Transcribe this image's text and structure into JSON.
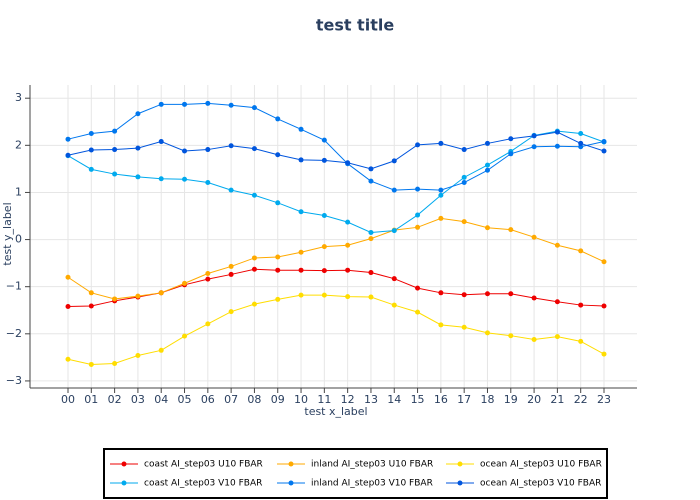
{
  "chart_data": {
    "type": "line",
    "title": "test title",
    "x_label": "test x_label",
    "y_label": "test y_label",
    "categories": [
      "00",
      "01",
      "02",
      "03",
      "04",
      "05",
      "06",
      "07",
      "08",
      "09",
      "10",
      "11",
      "12",
      "13",
      "14",
      "15",
      "16",
      "17",
      "18",
      "19",
      "20",
      "21",
      "22",
      "23"
    ],
    "ylim": [
      -3.15,
      3.28
    ],
    "yticks": [
      {
        "value": -3,
        "label": "−3"
      },
      {
        "value": -2,
        "label": "−2"
      },
      {
        "value": -1,
        "label": "−1"
      },
      0,
      1,
      2,
      3
    ],
    "grid": true,
    "series": [
      {
        "name": "coast AI_step03 U10 FBAR",
        "color": "#ee0000",
        "values": [
          -1.42,
          -1.41,
          -1.3,
          -1.22,
          -1.13,
          -0.96,
          -0.84,
          -0.74,
          -0.63,
          -0.65,
          -0.65,
          -0.66,
          -0.65,
          -0.7,
          -0.83,
          -1.03,
          -1.13,
          -1.17,
          -1.15,
          -1.15,
          -1.24,
          -1.32,
          -1.39,
          -1.41
        ]
      },
      {
        "name": "inland AI_step03 U10 FBAR",
        "color": "#ffaa00",
        "values": [
          -0.8,
          -1.13,
          -1.26,
          -1.2,
          -1.13,
          -0.93,
          -0.72,
          -0.57,
          -0.39,
          -0.37,
          -0.27,
          -0.15,
          -0.12,
          0.02,
          0.2,
          0.26,
          0.45,
          0.38,
          0.25,
          0.21,
          0.05,
          -0.12,
          -0.24,
          -0.47
        ]
      },
      {
        "name": "ocean AI_step03 U10 FBAR",
        "color": "#ffdd00",
        "values": [
          -2.54,
          -2.65,
          -2.63,
          -2.46,
          -2.35,
          -2.05,
          -1.79,
          -1.53,
          -1.37,
          -1.27,
          -1.18,
          -1.18,
          -1.21,
          -1.22,
          -1.39,
          -1.54,
          -1.81,
          -1.86,
          -1.98,
          -2.04,
          -2.12,
          -2.06,
          -2.16,
          -2.43
        ]
      },
      {
        "name": "coast AI_step03 V10 FBAR",
        "color": "#00aaee",
        "values": [
          1.78,
          1.49,
          1.39,
          1.33,
          1.29,
          1.28,
          1.21,
          1.05,
          0.94,
          0.78,
          0.59,
          0.51,
          0.37,
          0.15,
          0.19,
          0.52,
          0.94,
          1.32,
          1.58,
          1.87,
          2.21,
          2.3,
          2.25,
          2.07
        ]
      },
      {
        "name": "inland AI_step03 V10 FBAR",
        "color": "#0077ee",
        "values": [
          2.13,
          2.25,
          2.3,
          2.67,
          2.87,
          2.87,
          2.89,
          2.85,
          2.8,
          2.56,
          2.34,
          2.11,
          1.61,
          1.24,
          1.05,
          1.07,
          1.05,
          1.21,
          1.47,
          1.82,
          1.97,
          1.98,
          1.97,
          2.08
        ]
      },
      {
        "name": "ocean AI_step03 V10 FBAR",
        "color": "#0055dd",
        "values": [
          1.79,
          1.9,
          1.91,
          1.94,
          2.08,
          1.88,
          1.91,
          1.99,
          1.93,
          1.8,
          1.69,
          1.68,
          1.63,
          1.5,
          1.67,
          2.01,
          2.04,
          1.91,
          2.04,
          2.14,
          2.2,
          2.28,
          2.04,
          1.88
        ]
      }
    ]
  }
}
